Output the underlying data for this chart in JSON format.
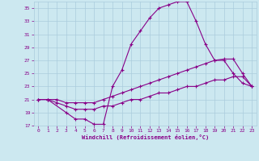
{
  "xlabel": "Windchill (Refroidissement éolien,°C)",
  "bg_color": "#cce8f0",
  "grid_color": "#aaccdd",
  "line_color": "#880088",
  "xlim": [
    -0.5,
    23.5
  ],
  "ylim": [
    17,
    36
  ],
  "xticks": [
    0,
    1,
    2,
    3,
    4,
    5,
    6,
    7,
    8,
    9,
    10,
    11,
    12,
    13,
    14,
    15,
    16,
    17,
    18,
    19,
    20,
    21,
    22,
    23
  ],
  "yticks": [
    17,
    19,
    21,
    23,
    25,
    27,
    29,
    31,
    33,
    35
  ],
  "line1_x": [
    0,
    1,
    3,
    4,
    5,
    6,
    7,
    8,
    9,
    10,
    11,
    12,
    13,
    14,
    15,
    16,
    17,
    18,
    19,
    20,
    21,
    22,
    23
  ],
  "line1_y": [
    21,
    21,
    19,
    18,
    18,
    17.2,
    17.2,
    23,
    25.5,
    29.5,
    31.5,
    33.5,
    35,
    35.5,
    36,
    36,
    33,
    29.5,
    27,
    27,
    25,
    23.5,
    23
  ],
  "line2_x": [
    0,
    1,
    2,
    3,
    4,
    5,
    6,
    7,
    8,
    9,
    10,
    11,
    12,
    13,
    14,
    15,
    16,
    17,
    18,
    19,
    20,
    21,
    22,
    23
  ],
  "line2_y": [
    21,
    21,
    21,
    20.5,
    20.5,
    20.5,
    20.5,
    21,
    21.5,
    22,
    22.5,
    23,
    23.5,
    24,
    24.5,
    25,
    25.5,
    26,
    26.5,
    27,
    27.2,
    27.2,
    25,
    23
  ],
  "line3_x": [
    0,
    1,
    2,
    3,
    4,
    5,
    6,
    7,
    8,
    9,
    10,
    11,
    12,
    13,
    14,
    15,
    16,
    17,
    18,
    19,
    20,
    21,
    22,
    23
  ],
  "line3_y": [
    21,
    21,
    20.5,
    20,
    19.5,
    19.5,
    19.5,
    20,
    20,
    20.5,
    21,
    21,
    21.5,
    22,
    22,
    22.5,
    23,
    23,
    23.5,
    24,
    24,
    24.5,
    24.5,
    23
  ]
}
